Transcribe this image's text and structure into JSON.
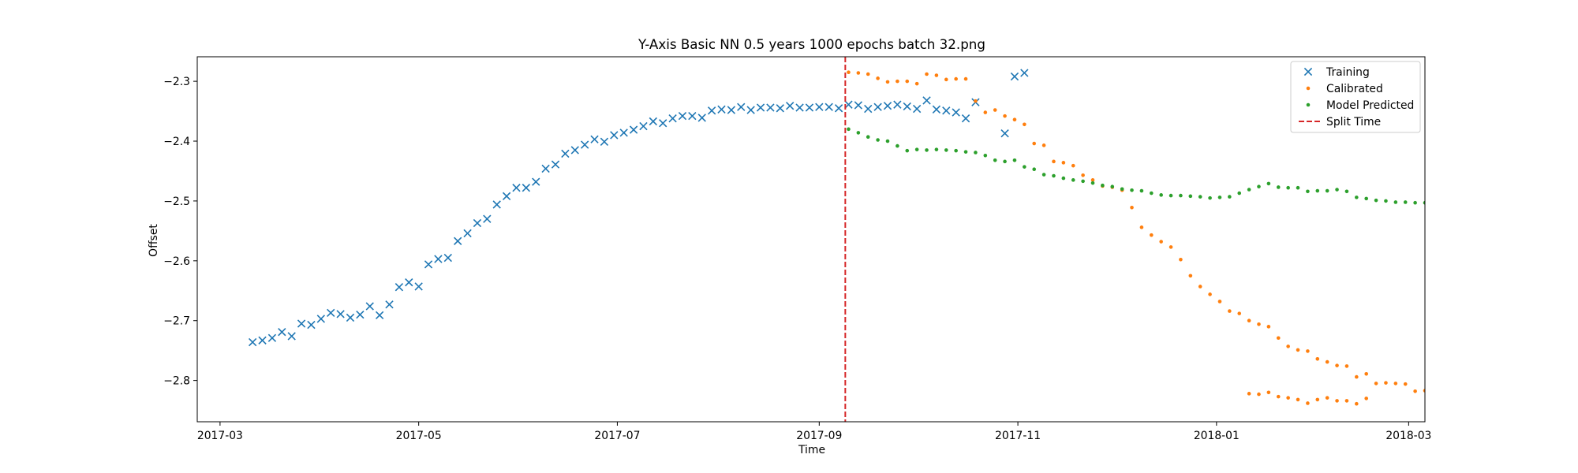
{
  "chart_data": {
    "type": "scatter",
    "title": "Y-Axis Basic NN 0.5 years 1000 epochs batch 32.png",
    "xlabel": "Time",
    "ylabel": "Offset",
    "xlim": [
      "2017-02-22",
      "2018-03-06"
    ],
    "ylim": [
      -2.869,
      -2.259
    ],
    "x_ticks": [
      "2017-03",
      "2017-05",
      "2017-07",
      "2017-09",
      "2017-11",
      "2018-01",
      "2018-03"
    ],
    "y_ticks": [
      "−2.3",
      "−2.4",
      "−2.5",
      "−2.6",
      "−2.7",
      "−2.8"
    ],
    "y_tick_values": [
      -2.3,
      -2.4,
      -2.5,
      -2.6,
      -2.7,
      -2.8
    ],
    "grid": false,
    "legend_position": "top-right",
    "split_time": "2017-09-09",
    "split_label": "Split Time",
    "split_color": "#d62728",
    "series": [
      {
        "name": "Training",
        "marker": "x",
        "color": "#1f77b4",
        "points": [
          [
            "2017-03-11",
            -2.736
          ],
          [
            "2017-03-14",
            -2.733
          ],
          [
            "2017-03-17",
            -2.729
          ],
          [
            "2017-03-20",
            -2.719
          ],
          [
            "2017-03-23",
            -2.726
          ],
          [
            "2017-03-26",
            -2.705
          ],
          [
            "2017-03-29",
            -2.707
          ],
          [
            "2017-04-01",
            -2.697
          ],
          [
            "2017-04-04",
            -2.687
          ],
          [
            "2017-04-07",
            -2.689
          ],
          [
            "2017-04-10",
            -2.695
          ],
          [
            "2017-04-13",
            -2.69
          ],
          [
            "2017-04-16",
            -2.676
          ],
          [
            "2017-04-19",
            -2.691
          ],
          [
            "2017-04-22",
            -2.673
          ],
          [
            "2017-04-25",
            -2.644
          ],
          [
            "2017-04-28",
            -2.636
          ],
          [
            "2017-05-01",
            -2.643
          ],
          [
            "2017-05-04",
            -2.606
          ],
          [
            "2017-05-07",
            -2.597
          ],
          [
            "2017-05-10",
            -2.595
          ],
          [
            "2017-05-13",
            -2.567
          ],
          [
            "2017-05-16",
            -2.554
          ],
          [
            "2017-05-19",
            -2.537
          ],
          [
            "2017-05-22",
            -2.53
          ],
          [
            "2017-05-25",
            -2.506
          ],
          [
            "2017-05-28",
            -2.492
          ],
          [
            "2017-05-31",
            -2.478
          ],
          [
            "2017-06-03",
            -2.478
          ],
          [
            "2017-06-06",
            -2.468
          ],
          [
            "2017-06-09",
            -2.446
          ],
          [
            "2017-06-12",
            -2.439
          ],
          [
            "2017-06-15",
            -2.421
          ],
          [
            "2017-06-18",
            -2.415
          ],
          [
            "2017-06-21",
            -2.406
          ],
          [
            "2017-06-24",
            -2.397
          ],
          [
            "2017-06-27",
            -2.401
          ],
          [
            "2017-06-30",
            -2.39
          ],
          [
            "2017-07-03",
            -2.386
          ],
          [
            "2017-07-06",
            -2.381
          ],
          [
            "2017-07-09",
            -2.375
          ],
          [
            "2017-07-12",
            -2.367
          ],
          [
            "2017-07-15",
            -2.37
          ],
          [
            "2017-07-18",
            -2.362
          ],
          [
            "2017-07-21",
            -2.358
          ],
          [
            "2017-07-24",
            -2.358
          ],
          [
            "2017-07-27",
            -2.361
          ],
          [
            "2017-07-30",
            -2.349
          ],
          [
            "2017-08-02",
            -2.347
          ],
          [
            "2017-08-05",
            -2.348
          ],
          [
            "2017-08-08",
            -2.343
          ],
          [
            "2017-08-11",
            -2.348
          ],
          [
            "2017-08-14",
            -2.344
          ],
          [
            "2017-08-17",
            -2.344
          ],
          [
            "2017-08-20",
            -2.345
          ],
          [
            "2017-08-23",
            -2.341
          ],
          [
            "2017-08-26",
            -2.344
          ],
          [
            "2017-08-29",
            -2.344
          ],
          [
            "2017-09-01",
            -2.343
          ],
          [
            "2017-09-04",
            -2.343
          ],
          [
            "2017-09-07",
            -2.345
          ],
          [
            "2017-09-10",
            -2.339
          ],
          [
            "2017-09-13",
            -2.34
          ],
          [
            "2017-09-16",
            -2.346
          ],
          [
            "2017-09-19",
            -2.343
          ],
          [
            "2017-09-22",
            -2.341
          ],
          [
            "2017-09-25",
            -2.339
          ],
          [
            "2017-09-28",
            -2.342
          ],
          [
            "2017-10-01",
            -2.346
          ],
          [
            "2017-10-04",
            -2.332
          ],
          [
            "2017-10-07",
            -2.347
          ],
          [
            "2017-10-10",
            -2.349
          ],
          [
            "2017-10-13",
            -2.352
          ],
          [
            "2017-10-16",
            -2.362
          ],
          [
            "2017-10-19",
            -2.335
          ],
          [
            "2017-10-28",
            -2.387
          ],
          [
            "2017-10-31",
            -2.292
          ],
          [
            "2017-11-03",
            -2.286
          ]
        ]
      },
      {
        "name": "Calibrated",
        "marker": "dot",
        "color": "#ff7f0e",
        "points": [
          [
            "2017-09-10",
            -2.285
          ],
          [
            "2017-09-13",
            -2.286
          ],
          [
            "2017-09-16",
            -2.288
          ],
          [
            "2017-09-19",
            -2.295
          ],
          [
            "2017-09-22",
            -2.301
          ],
          [
            "2017-09-25",
            -2.3
          ],
          [
            "2017-09-28",
            -2.3
          ],
          [
            "2017-10-01",
            -2.304
          ],
          [
            "2017-10-04",
            -2.288
          ],
          [
            "2017-10-07",
            -2.29
          ],
          [
            "2017-10-10",
            -2.297
          ],
          [
            "2017-10-13",
            -2.296
          ],
          [
            "2017-10-16",
            -2.296
          ],
          [
            "2017-10-19",
            -2.333
          ],
          [
            "2017-10-22",
            -2.352
          ],
          [
            "2017-10-25",
            -2.348
          ],
          [
            "2017-10-28",
            -2.358
          ],
          [
            "2017-10-31",
            -2.364
          ],
          [
            "2017-11-03",
            -2.372
          ],
          [
            "2017-11-06",
            -2.404
          ],
          [
            "2017-11-09",
            -2.407
          ],
          [
            "2017-11-12",
            -2.434
          ],
          [
            "2017-11-15",
            -2.436
          ],
          [
            "2017-11-18",
            -2.441
          ],
          [
            "2017-11-21",
            -2.457
          ],
          [
            "2017-11-24",
            -2.465
          ],
          [
            "2017-11-27",
            -2.475
          ],
          [
            "2017-11-30",
            -2.477
          ],
          [
            "2017-12-03",
            -2.482
          ],
          [
            "2017-12-06",
            -2.511
          ],
          [
            "2017-12-09",
            -2.544
          ],
          [
            "2017-12-12",
            -2.557
          ],
          [
            "2017-12-15",
            -2.568
          ],
          [
            "2017-12-18",
            -2.577
          ],
          [
            "2017-12-21",
            -2.598
          ],
          [
            "2017-12-24",
            -2.625
          ],
          [
            "2017-12-27",
            -2.643
          ],
          [
            "2017-12-30",
            -2.656
          ],
          [
            "2018-01-02",
            -2.668
          ],
          [
            "2018-01-05",
            -2.684
          ],
          [
            "2018-01-08",
            -2.688
          ],
          [
            "2018-01-11",
            -2.7
          ],
          [
            "2018-01-14",
            -2.706
          ],
          [
            "2018-01-17",
            -2.71
          ],
          [
            "2018-01-20",
            -2.729
          ],
          [
            "2018-01-23",
            -2.743
          ],
          [
            "2018-01-26",
            -2.749
          ],
          [
            "2018-01-29",
            -2.751
          ],
          [
            "2018-02-01",
            -2.764
          ],
          [
            "2018-02-04",
            -2.769
          ],
          [
            "2018-02-07",
            -2.775
          ],
          [
            "2018-02-10",
            -2.776
          ],
          [
            "2018-02-13",
            -2.794
          ],
          [
            "2018-02-16",
            -2.789
          ],
          [
            "2018-02-19",
            -2.805
          ],
          [
            "2018-02-22",
            -2.804
          ],
          [
            "2018-02-25",
            -2.805
          ],
          [
            "2018-02-28",
            -2.806
          ],
          [
            "2018-03-03",
            -2.818
          ],
          [
            "2018-03-06",
            -2.817
          ],
          [
            "2018-01-11",
            -2.822
          ],
          [
            "2018-01-14",
            -2.823
          ],
          [
            "2018-01-17",
            -2.82
          ],
          [
            "2018-01-20",
            -2.827
          ],
          [
            "2018-01-23",
            -2.829
          ],
          [
            "2018-01-26",
            -2.832
          ],
          [
            "2018-01-29",
            -2.838
          ],
          [
            "2018-02-01",
            -2.832
          ],
          [
            "2018-02-04",
            -2.829
          ],
          [
            "2018-02-07",
            -2.834
          ],
          [
            "2018-02-10",
            -2.834
          ],
          [
            "2018-02-13",
            -2.839
          ],
          [
            "2018-02-16",
            -2.83
          ]
        ]
      },
      {
        "name": "Model Predicted",
        "marker": "dot",
        "color": "#2ca02c",
        "points": [
          [
            "2017-09-10",
            -2.38
          ],
          [
            "2017-09-13",
            -2.386
          ],
          [
            "2017-09-16",
            -2.393
          ],
          [
            "2017-09-19",
            -2.398
          ],
          [
            "2017-09-22",
            -2.4
          ],
          [
            "2017-09-25",
            -2.408
          ],
          [
            "2017-09-28",
            -2.416
          ],
          [
            "2017-10-01",
            -2.414
          ],
          [
            "2017-10-04",
            -2.415
          ],
          [
            "2017-10-07",
            -2.414
          ],
          [
            "2017-10-10",
            -2.415
          ],
          [
            "2017-10-13",
            -2.416
          ],
          [
            "2017-10-16",
            -2.418
          ],
          [
            "2017-10-19",
            -2.419
          ],
          [
            "2017-10-22",
            -2.424
          ],
          [
            "2017-10-25",
            -2.432
          ],
          [
            "2017-10-28",
            -2.434
          ],
          [
            "2017-10-31",
            -2.432
          ],
          [
            "2017-11-03",
            -2.443
          ],
          [
            "2017-11-06",
            -2.447
          ],
          [
            "2017-11-09",
            -2.456
          ],
          [
            "2017-11-12",
            -2.458
          ],
          [
            "2017-11-15",
            -2.462
          ],
          [
            "2017-11-18",
            -2.465
          ],
          [
            "2017-11-21",
            -2.467
          ],
          [
            "2017-11-24",
            -2.47
          ],
          [
            "2017-11-27",
            -2.474
          ],
          [
            "2017-11-30",
            -2.476
          ],
          [
            "2017-12-03",
            -2.48
          ],
          [
            "2017-12-06",
            -2.482
          ],
          [
            "2017-12-09",
            -2.483
          ],
          [
            "2017-12-12",
            -2.487
          ],
          [
            "2017-12-15",
            -2.49
          ],
          [
            "2017-12-18",
            -2.491
          ],
          [
            "2017-12-21",
            -2.491
          ],
          [
            "2017-12-24",
            -2.492
          ],
          [
            "2017-12-27",
            -2.493
          ],
          [
            "2017-12-30",
            -2.495
          ],
          [
            "2018-01-02",
            -2.494
          ],
          [
            "2018-01-05",
            -2.493
          ],
          [
            "2018-01-08",
            -2.487
          ],
          [
            "2018-01-11",
            -2.481
          ],
          [
            "2018-01-14",
            -2.476
          ],
          [
            "2018-01-17",
            -2.471
          ],
          [
            "2018-01-20",
            -2.477
          ],
          [
            "2018-01-23",
            -2.478
          ],
          [
            "2018-01-26",
            -2.478
          ],
          [
            "2018-01-29",
            -2.484
          ],
          [
            "2018-02-01",
            -2.483
          ],
          [
            "2018-02-04",
            -2.483
          ],
          [
            "2018-02-07",
            -2.481
          ],
          [
            "2018-02-10",
            -2.484
          ],
          [
            "2018-02-13",
            -2.494
          ],
          [
            "2018-02-16",
            -2.496
          ],
          [
            "2018-02-19",
            -2.499
          ],
          [
            "2018-02-22",
            -2.5
          ],
          [
            "2018-02-25",
            -2.502
          ],
          [
            "2018-02-28",
            -2.502
          ],
          [
            "2018-03-03",
            -2.503
          ],
          [
            "2018-03-06",
            -2.503
          ]
        ]
      }
    ]
  }
}
